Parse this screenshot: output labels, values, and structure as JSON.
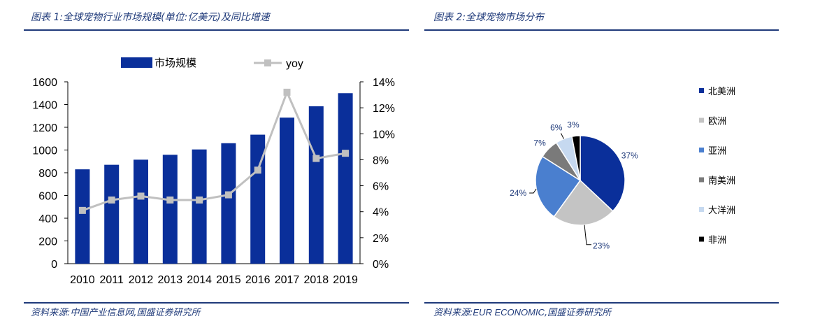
{
  "left_panel": {
    "title": "图表 1:全球宠物行业市场规模(单位:亿美元)及同比增速",
    "source": "资料来源:中国产业信息网,国盛证券研究所"
  },
  "right_panel": {
    "title": "图表 2:全球宠物市场分布",
    "source_prefix": "资料来源:",
    "source_brand": "EUR ECONOMIC",
    "source_suffix": ",国盛证券研究所"
  },
  "colors": {
    "bar": "#0a2f9a",
    "line": "#c0c0c0",
    "rule": "#1f3a7a",
    "label": "#1f3a7a"
  },
  "chart_data": [
    {
      "type": "bar",
      "title": "全球宠物行业市场规模及同比增速",
      "categories": [
        "2010",
        "2011",
        "2012",
        "2013",
        "2014",
        "2015",
        "2016",
        "2017",
        "2018",
        "2019"
      ],
      "series": [
        {
          "name": "市场规模",
          "type": "bar",
          "axis": "left",
          "values": [
            830,
            870,
            915,
            958,
            1005,
            1060,
            1135,
            1285,
            1385,
            1500
          ]
        },
        {
          "name": "yoy",
          "type": "line",
          "axis": "right",
          "values": [
            0.041,
            0.049,
            0.052,
            0.049,
            0.049,
            0.053,
            0.072,
            0.132,
            0.081,
            0.085
          ]
        }
      ],
      "left_axis": {
        "ylim": [
          0,
          1600
        ],
        "ticks": [
          "0",
          "200",
          "400",
          "600",
          "800",
          "1000",
          "1200",
          "1400",
          "1600"
        ]
      },
      "right_axis": {
        "ylim": [
          0,
          0.14
        ],
        "ticks": [
          "0%",
          "2%",
          "4%",
          "6%",
          "8%",
          "10%",
          "12%",
          "14%"
        ]
      },
      "legend": {
        "placement": "top",
        "items": [
          "市场规模",
          "yoy"
        ]
      }
    },
    {
      "type": "pie",
      "title": "全球宠物市场分布",
      "slices": [
        {
          "name": "北美洲",
          "value": 37,
          "label": "37%",
          "color": "#0a2f9a"
        },
        {
          "name": "欧洲",
          "value": 23,
          "label": "23%",
          "color": "#c4c4c4"
        },
        {
          "name": "亚洲",
          "value": 24,
          "label": "24%",
          "color": "#4a7fcf"
        },
        {
          "name": "南美洲",
          "value": 7,
          "label": "7%",
          "color": "#7a7a7a"
        },
        {
          "name": "大洋洲",
          "value": 6,
          "label": "6%",
          "color": "#c6d9f0"
        },
        {
          "name": "非洲",
          "value": 3,
          "label": "3%",
          "color": "#000000"
        }
      ],
      "legend": {
        "placement": "right"
      }
    }
  ]
}
